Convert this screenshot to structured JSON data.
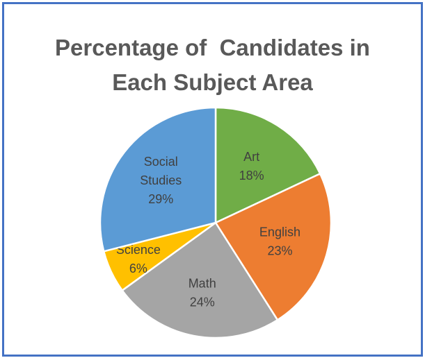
{
  "chart_data": {
    "type": "pie",
    "title_lines": [
      "Percentage of  Candidates in",
      "Each Subject Area"
    ],
    "slices": [
      {
        "name": "Art",
        "label_lines": [
          "Art",
          "18%"
        ],
        "value": 18,
        "color": "#70ad47"
      },
      {
        "name": "English",
        "label_lines": [
          "English",
          "23%"
        ],
        "value": 23,
        "color": "#ed7d31"
      },
      {
        "name": "Math",
        "label_lines": [
          "Math",
          "24%"
        ],
        "value": 24,
        "color": "#a5a5a5"
      },
      {
        "name": "Science",
        "label_lines": [
          "Science",
          "6%"
        ],
        "value": 6,
        "color": "#ffc000"
      },
      {
        "name": "Social Studies",
        "label_lines": [
          "Social",
          "Studies",
          "29%"
        ],
        "value": 29,
        "color": "#5b9bd5"
      }
    ],
    "legend": "none"
  }
}
